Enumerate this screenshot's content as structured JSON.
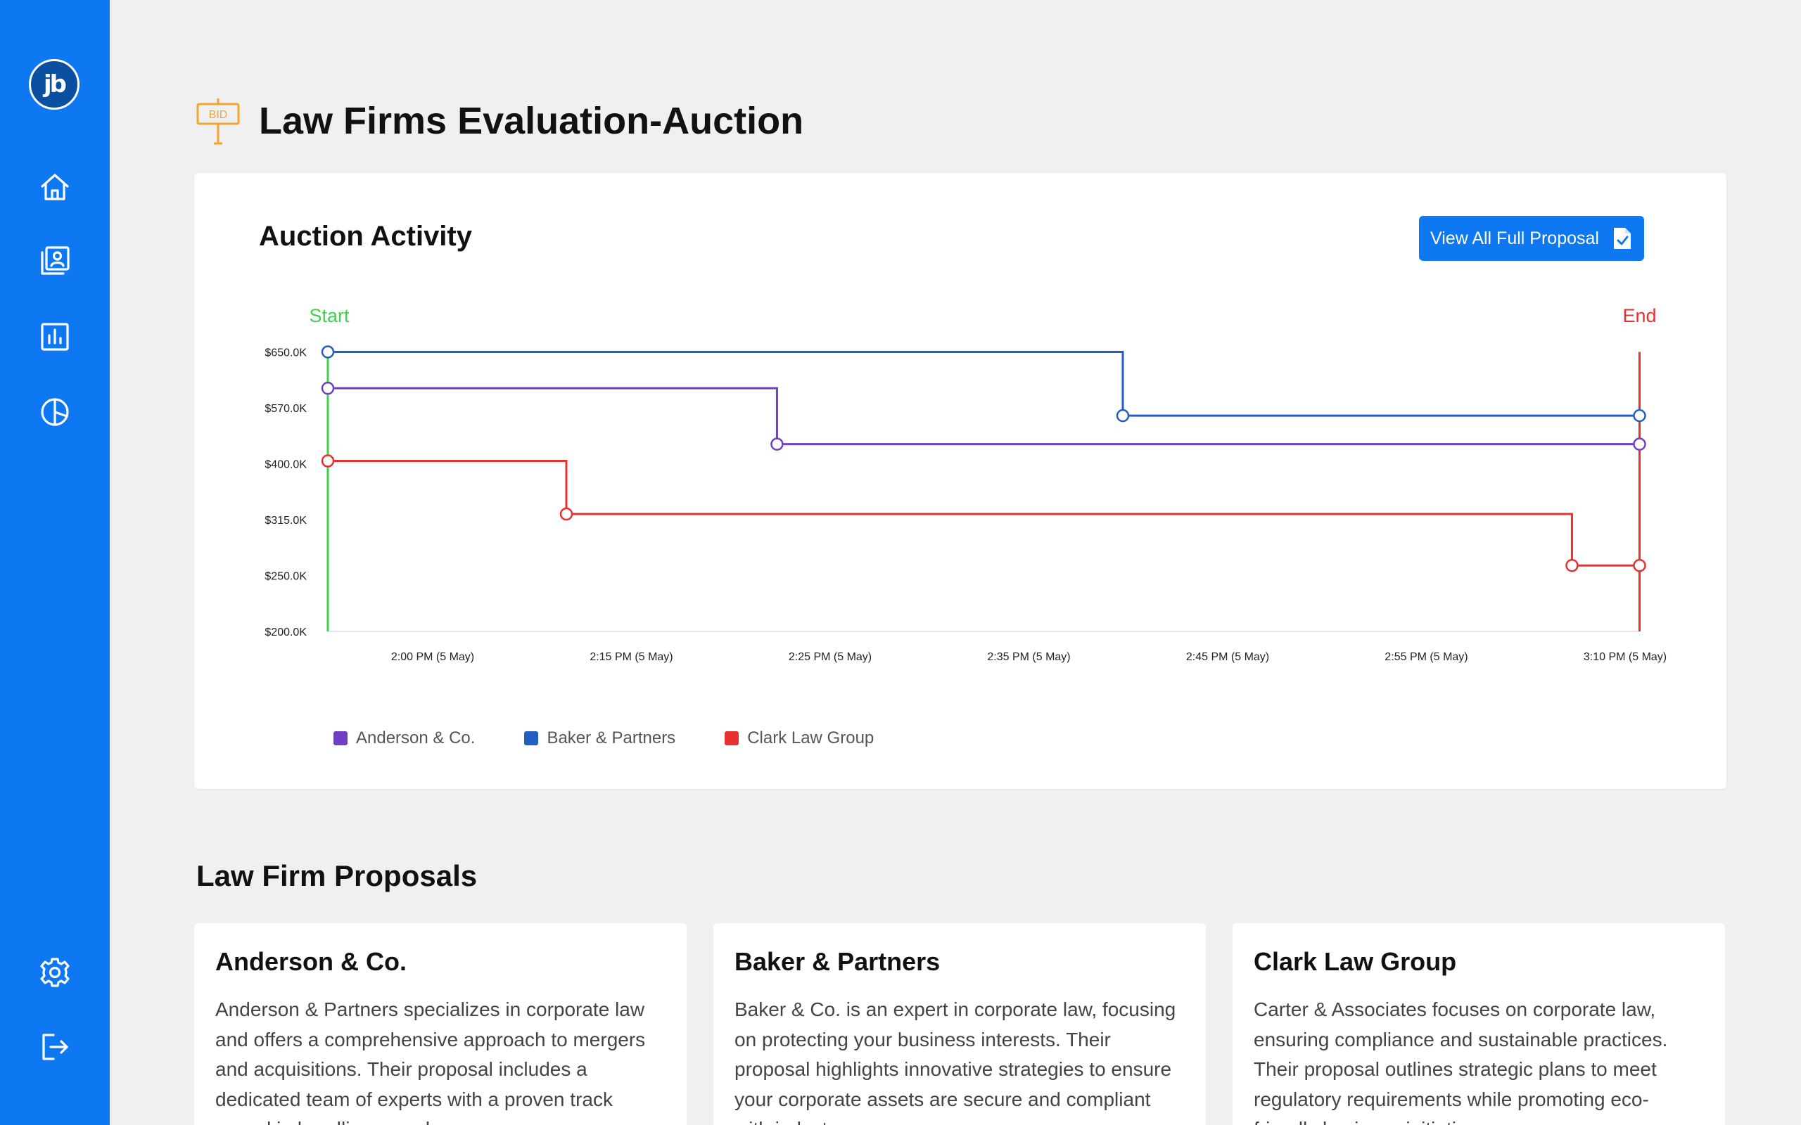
{
  "app": {
    "logo_text": "jb"
  },
  "sidebar": {
    "items": [
      {
        "name": "home",
        "icon": "home-icon"
      },
      {
        "name": "contacts",
        "icon": "contacts-book-icon"
      },
      {
        "name": "reports",
        "icon": "bar-chart-icon"
      },
      {
        "name": "analytics",
        "icon": "pie-chart-icon"
      }
    ],
    "bottom": [
      {
        "name": "settings",
        "icon": "gear-icon"
      },
      {
        "name": "logout",
        "icon": "logout-icon"
      }
    ]
  },
  "page": {
    "title": "Law Firms Evaluation-Auction",
    "title_icon": "bid-sign-icon",
    "title_icon_text": "BID"
  },
  "auction_card": {
    "title": "Auction Activity",
    "button_label": "View All Full Proposal",
    "start_label": "Start",
    "end_label": "End"
  },
  "colors": {
    "accent": "#0d78f2",
    "anderson": "#6f3fc4",
    "baker": "#235fc0",
    "clark": "#e8312f",
    "start": "#3fd24a",
    "end": "#e8312f"
  },
  "chart_data": {
    "type": "line",
    "step": true,
    "y_tick_labels": [
      "$200.0K",
      "$250.0K",
      "$315.0K",
      "$400.0K",
      "$570.0K",
      "$650.0K"
    ],
    "x_tick_labels": [
      "2:00 PM (5 May)",
      "2:15 PM (5 May)",
      "2:25 PM (5 May)",
      "2:35 PM (5 May)",
      "2:45 PM (5 May)",
      "2:55 PM (5 May)",
      "3:10 PM (5 May)"
    ],
    "series": [
      {
        "name": "Baker & Partners",
        "points": [
          [
            0.0,
            5.0
          ],
          [
            4.0,
            3.86
          ],
          [
            6.6,
            3.86
          ]
        ]
      },
      {
        "name": "Anderson & Co.",
        "points": [
          [
            0.0,
            4.35
          ],
          [
            2.26,
            3.35
          ],
          [
            6.6,
            3.35
          ]
        ]
      },
      {
        "name": "Clark Law Group",
        "points": [
          [
            0.0,
            3.05
          ],
          [
            1.2,
            2.1
          ],
          [
            6.26,
            1.18
          ],
          [
            6.6,
            1.18
          ]
        ]
      }
    ],
    "start_x": 0.0,
    "end_x": 6.6,
    "grid": false,
    "legend": "bottom-left"
  },
  "proposals": {
    "title": "Law Firm Proposals",
    "cards": [
      {
        "name": "Anderson & Co.",
        "text": "Anderson & Partners specializes in corporate law and offers a comprehensive approach to mergers and acquisitions. Their proposal includes a dedicated team of experts with a proven track record in handling complex"
      },
      {
        "name": "Baker & Partners",
        "text": "Baker & Co. is an expert in corporate law, focusing on protecting your business interests. Their proposal highlights innovative strategies to ensure your corporate assets are secure and compliant with industry"
      },
      {
        "name": "Clark Law Group",
        "text": "Carter & Associates focuses on corporate law, ensuring compliance and sustainable practices. Their proposal outlines strategic plans to meet regulatory requirements while promoting eco-friendly business initiatives."
      }
    ]
  }
}
